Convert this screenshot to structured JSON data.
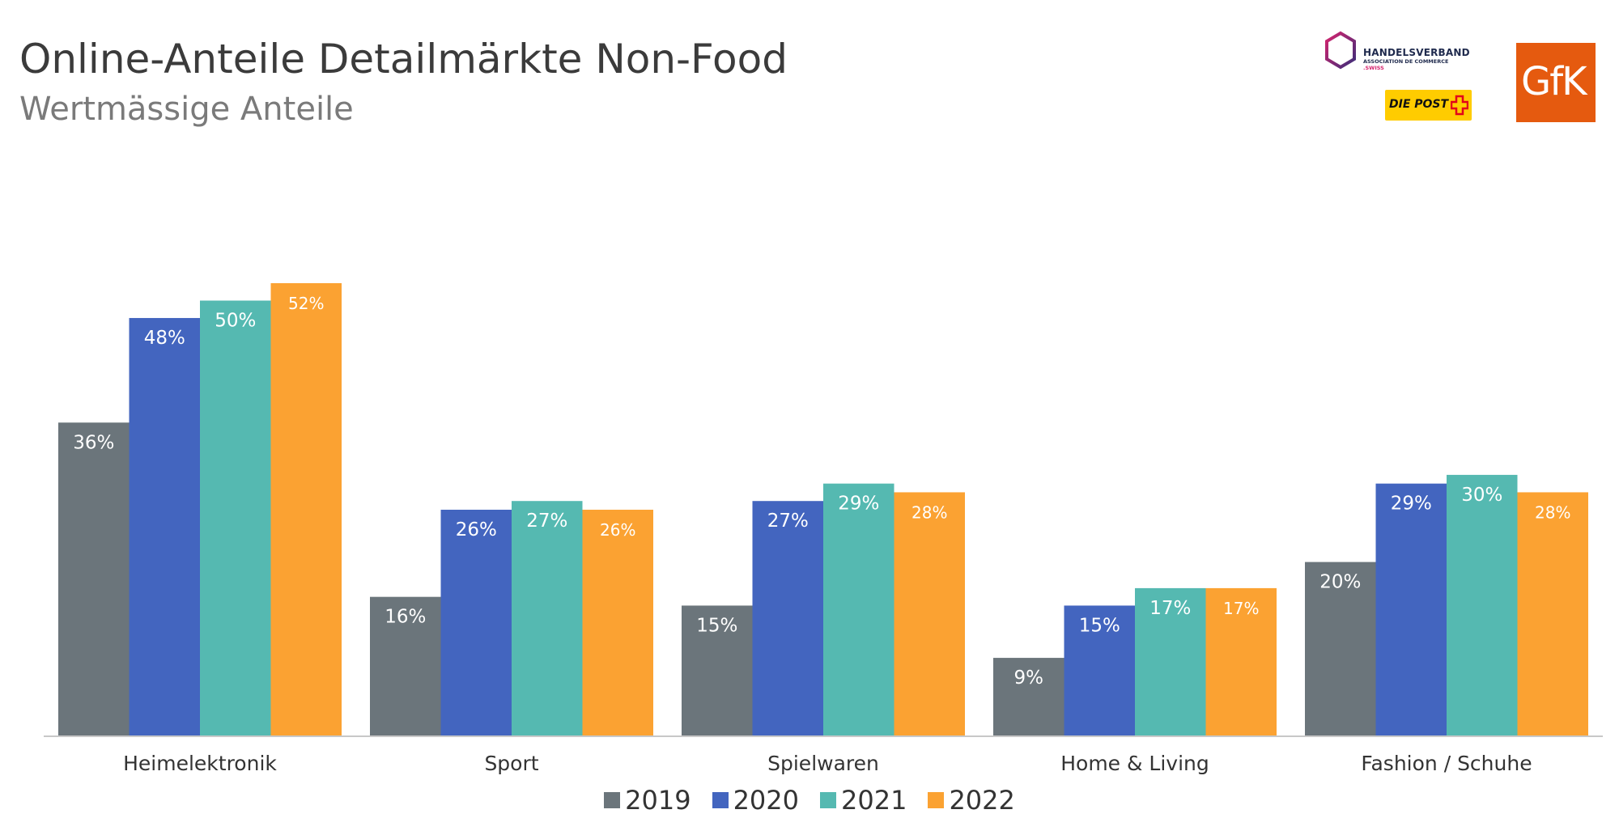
{
  "header": {
    "title": "Online-Anteile Detailmärkte Non-Food",
    "subtitle": "Wertmässige Anteile"
  },
  "logos": {
    "handelsverband": {
      "line1": "HANDELSVERBAND",
      "line2": "ASSOCIATION DE COMMERCE",
      "line3": ".SWISS",
      "color": "#1f2a4d",
      "accent": "#d6246e"
    },
    "post": {
      "text": "DIE POST",
      "color": "#ffcc00",
      "cross_color": "#e2001a"
    },
    "gfk": {
      "text": "GfK",
      "color": "#e55a0f"
    }
  },
  "chart_data": {
    "type": "bar",
    "title": "Online-Anteile Detailmärkte Non-Food",
    "subtitle": "Wertmässige Anteile",
    "categories": [
      "Heimelektronik",
      "Sport",
      "Spielwaren",
      "Home & Living",
      "Fashion / Schuhe"
    ],
    "series": [
      {
        "name": "2019",
        "color": "#6b757b",
        "values": [
          36,
          16,
          15,
          9,
          20
        ],
        "labels": [
          "36%",
          "16%",
          "15%",
          "9%",
          "20%"
        ]
      },
      {
        "name": "2020",
        "color": "#4365bf",
        "values": [
          48,
          26,
          27,
          15,
          29
        ],
        "labels": [
          "48%",
          "26%",
          "27%",
          "15%",
          "29%"
        ]
      },
      {
        "name": "2021",
        "color": "#55b9b1",
        "values": [
          50,
          27,
          29,
          17,
          30
        ],
        "labels": [
          "50%",
          "27%",
          "29%",
          "17%",
          "30%"
        ]
      },
      {
        "name": "2022",
        "color": "#fba232",
        "values": [
          52,
          26,
          28,
          17,
          28
        ],
        "labels": [
          "52%",
          "26%",
          "28%",
          "17%",
          "28%"
        ]
      }
    ],
    "unit": "%",
    "ylim": [
      0,
      60
    ],
    "grid": false,
    "legend_position": "bottom"
  }
}
